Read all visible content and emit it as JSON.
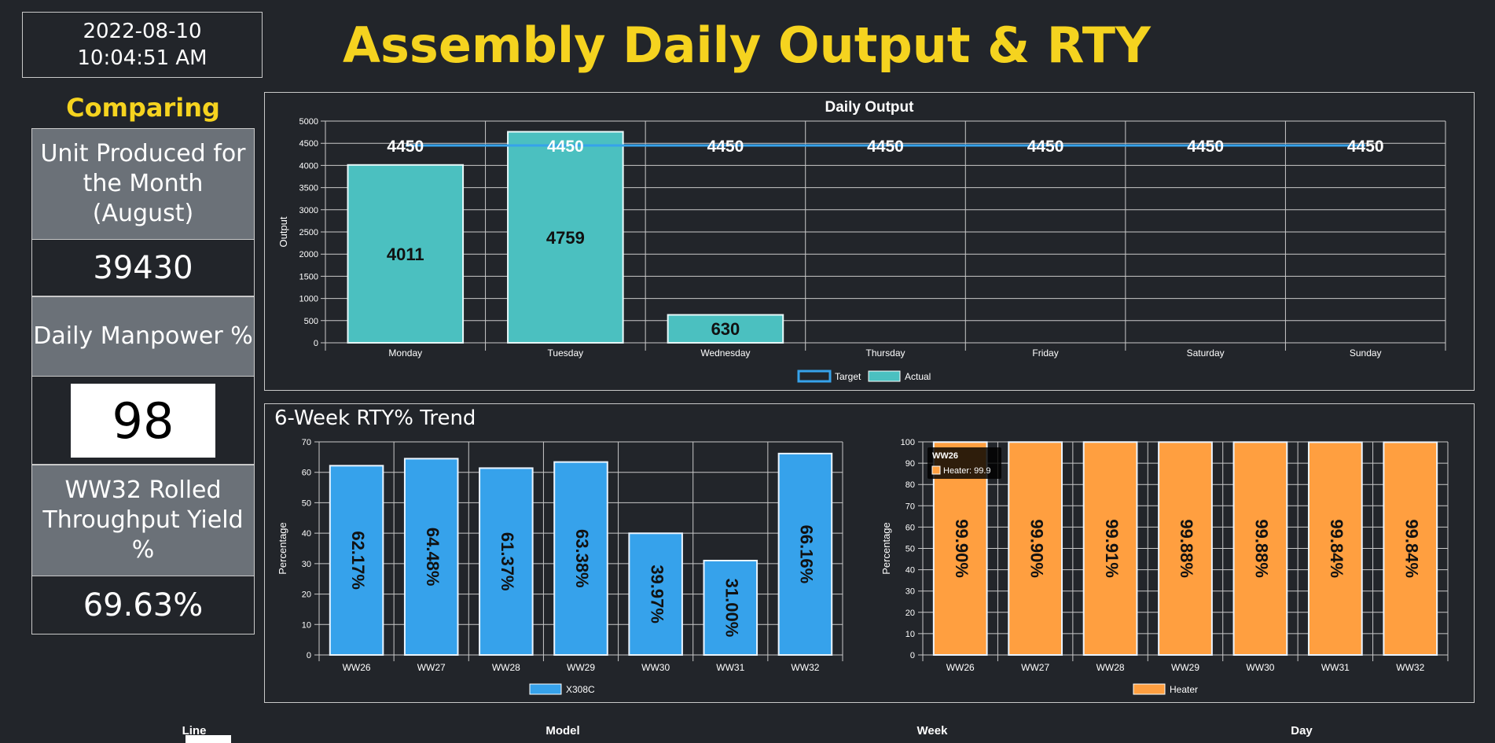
{
  "clock": {
    "date": "2022-08-10",
    "time": "10:04:51 AM"
  },
  "title": "Assembly Daily Output & RTY",
  "sidebar": {
    "heading": "Comparing",
    "kpis": [
      {
        "label": "Unit Produced for the Month (August)",
        "value": "39430"
      },
      {
        "label": "Daily Manpower %",
        "value": "98"
      },
      {
        "label": "WW32 Rolled Throughput Yield %",
        "value": "69.63%"
      }
    ]
  },
  "colors": {
    "accent": "#f5d31f",
    "actual": "#4bc0c0",
    "target": "#36a2eb",
    "x308c": "#36a2eb",
    "heater": "#ff9f40"
  },
  "chart_data": [
    {
      "type": "bar",
      "title": "Daily Output",
      "ylabel": "Output",
      "ylim": [
        0,
        5000
      ],
      "yticks": [
        0,
        500,
        1000,
        1500,
        2000,
        2500,
        3000,
        3500,
        4000,
        4500,
        5000
      ],
      "categories": [
        "Monday",
        "Tuesday",
        "Wednesday",
        "Thursday",
        "Friday",
        "Saturday",
        "Sunday"
      ],
      "series": [
        {
          "name": "Actual",
          "type": "bar",
          "values": [
            4011,
            4759,
            630,
            null,
            null,
            null,
            null
          ]
        },
        {
          "name": "Target",
          "type": "line",
          "values": [
            4450,
            4450,
            4450,
            4450,
            4450,
            4450,
            4450
          ]
        }
      ],
      "legend": [
        "Target",
        "Actual"
      ]
    },
    {
      "type": "bar",
      "title": "6-Week RTY% Trend",
      "ylabel": "Percentage",
      "ylim": [
        0,
        70
      ],
      "yticks": [
        0,
        10,
        20,
        30,
        40,
        50,
        60,
        70
      ],
      "categories": [
        "WW26",
        "WW27",
        "WW28",
        "WW29",
        "WW30",
        "WW31",
        "WW32"
      ],
      "series": [
        {
          "name": "X308C",
          "values": [
            62.17,
            64.48,
            61.37,
            63.38,
            39.97,
            31.0,
            66.16
          ],
          "labels": [
            "62.17%",
            "64.48%",
            "61.37%",
            "63.38%",
            "39.97%",
            "31.00%",
            "66.16%"
          ]
        }
      ]
    },
    {
      "type": "bar",
      "ylabel": "Percentage",
      "ylim": [
        0,
        100
      ],
      "yticks": [
        0,
        10,
        20,
        30,
        40,
        50,
        60,
        70,
        80,
        90,
        100
      ],
      "categories": [
        "WW26",
        "WW27",
        "WW28",
        "WW29",
        "WW30",
        "WW31",
        "WW32"
      ],
      "series": [
        {
          "name": "Heater",
          "values": [
            99.9,
            99.9,
            99.91,
            99.88,
            99.88,
            99.84,
            99.84
          ],
          "labels": [
            "99.90%",
            "99.90%",
            "99.91%",
            "99.88%",
            "99.88%",
            "99.84%",
            "99.84%"
          ]
        }
      ],
      "tooltip": {
        "title": "WW26",
        "text": "Heater: 99.9"
      }
    }
  ],
  "filters": {
    "line": "Line",
    "model": "Model",
    "week": "Week",
    "day": "Day"
  }
}
